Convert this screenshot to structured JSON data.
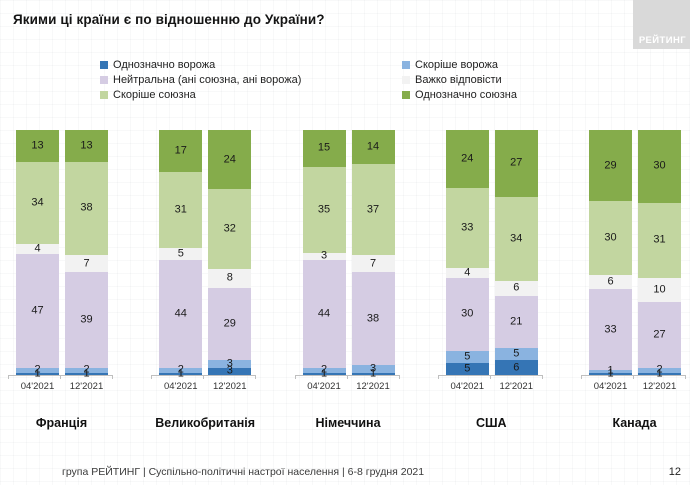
{
  "title": "Якими ці країни є по відношенню до України?",
  "logo": {
    "text": "РЕЙТИНГ"
  },
  "colors": {
    "definitely_hostile": "#3575B5",
    "rather_hostile": "#8AB3E0",
    "neutral": "#D5CCE3",
    "hard_to_say": "#F2F2F2",
    "rather_allied": "#C2D6A0",
    "definitely_allied": "#85AC4B",
    "axis_line": "#bfbfbf"
  },
  "legend": {
    "columns": [
      {
        "items": [
          {
            "key": "definitely_hostile",
            "label": "Однозначно ворожа"
          },
          {
            "key": "neutral",
            "label": "Нейтральна (ані союзна, ані ворожа)"
          },
          {
            "key": "rather_allied",
            "label": "Скоріше союзна"
          }
        ]
      },
      {
        "items": [
          {
            "key": "rather_hostile",
            "label": "Скоріше ворожа"
          },
          {
            "key": "hard_to_say",
            "label": "Важко відповісти"
          },
          {
            "key": "definitely_allied",
            "label": "Однозначно союзна"
          }
        ]
      }
    ]
  },
  "chart_data": {
    "type": "bar",
    "stacked": true,
    "unit": "percent",
    "legend_position": "top",
    "stack_order_bottom_to_top": [
      "definitely_hostile",
      "rather_hostile",
      "neutral",
      "hard_to_say",
      "rather_allied",
      "definitely_allied"
    ],
    "series_labels": {
      "definitely_hostile": "Однозначно ворожа",
      "rather_hostile": "Скоріше ворожа",
      "neutral": "Нейтральна (ані союзна, ані ворожа)",
      "hard_to_say": "Важко відповісти",
      "rather_allied": "Скоріше союзна",
      "definitely_allied": "Однозначно союзна"
    },
    "waves": [
      "04'2021",
      "12'2021"
    ],
    "groups": [
      {
        "country": "Франція",
        "bars": [
          {
            "wave": "04'2021",
            "values": {
              "definitely_hostile": 1,
              "rather_hostile": 2,
              "neutral": 47,
              "hard_to_say": 4,
              "rather_allied": 34,
              "definitely_allied": 13
            }
          },
          {
            "wave": "12'2021",
            "values": {
              "definitely_hostile": 1,
              "rather_hostile": 2,
              "neutral": 39,
              "hard_to_say": 7,
              "rather_allied": 38,
              "definitely_allied": 13
            }
          }
        ]
      },
      {
        "country": "Великобританія",
        "bars": [
          {
            "wave": "04'2021",
            "values": {
              "definitely_hostile": 1,
              "rather_hostile": 2,
              "neutral": 44,
              "hard_to_say": 5,
              "rather_allied": 31,
              "definitely_allied": 17
            }
          },
          {
            "wave": "12'2021",
            "values": {
              "definitely_hostile": 3,
              "rather_hostile": 3,
              "neutral": 29,
              "hard_to_say": 8,
              "rather_allied": 32,
              "definitely_allied": 24
            }
          }
        ]
      },
      {
        "country": "Німеччина",
        "bars": [
          {
            "wave": "04'2021",
            "values": {
              "definitely_hostile": 1,
              "rather_hostile": 2,
              "neutral": 44,
              "hard_to_say": 3,
              "rather_allied": 35,
              "definitely_allied": 15
            }
          },
          {
            "wave": "12'2021",
            "values": {
              "definitely_hostile": 1,
              "rather_hostile": 3,
              "neutral": 38,
              "hard_to_say": 7,
              "rather_allied": 37,
              "definitely_allied": 14
            }
          }
        ]
      },
      {
        "country": "США",
        "bars": [
          {
            "wave": "04'2021",
            "values": {
              "definitely_hostile": 5,
              "rather_hostile": 5,
              "neutral": 30,
              "hard_to_say": 4,
              "rather_allied": 33,
              "definitely_allied": 24
            }
          },
          {
            "wave": "12'2021",
            "values": {
              "definitely_hostile": 6,
              "rather_hostile": 5,
              "neutral": 21,
              "hard_to_say": 6,
              "rather_allied": 34,
              "definitely_allied": 27
            }
          }
        ]
      },
      {
        "country": "Канада",
        "bars": [
          {
            "wave": "04'2021",
            "values": {
              "definitely_hostile": 1,
              "rather_hostile": 1,
              "neutral": 33,
              "hard_to_say": 6,
              "rather_allied": 30,
              "definitely_allied": 29
            }
          },
          {
            "wave": "12'2021",
            "values": {
              "definitely_hostile": 1,
              "rather_hostile": 2,
              "neutral": 27,
              "hard_to_say": 10,
              "rather_allied": 31,
              "definitely_allied": 30
            }
          }
        ]
      }
    ]
  },
  "footer": {
    "source": "група РЕЙТИНГ | Суспільно-політичні настрої населення  | 6-8 грудня 2021",
    "page": "12"
  }
}
